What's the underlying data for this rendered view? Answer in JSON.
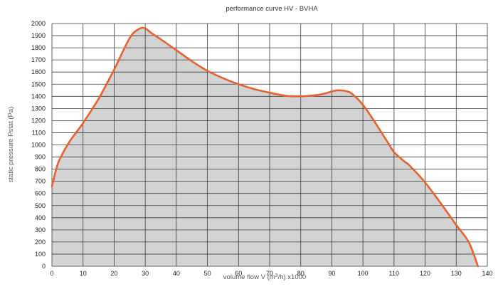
{
  "chart_data": {
    "type": "area",
    "title": "performance curve HV - BVHA",
    "xlabel": "volume flow V (m³/h) x1000",
    "ylabel": "static pressure Pstat (Pa)",
    "xlim": [
      0,
      140
    ],
    "ylim": [
      0,
      2000
    ],
    "xticks": [
      0,
      10,
      20,
      30,
      40,
      50,
      60,
      70,
      80,
      90,
      100,
      110,
      120,
      130,
      140
    ],
    "yticks": [
      0,
      100,
      200,
      300,
      400,
      500,
      600,
      700,
      800,
      900,
      1000,
      1100,
      1200,
      1300,
      1400,
      1500,
      1600,
      1700,
      1800,
      1900,
      2000
    ],
    "grid": true,
    "colors": {
      "line": "#e8602c",
      "fill": "#d3d3d3",
      "grid": "#3a3a3a"
    },
    "series": [
      {
        "x": [
          0,
          2,
          5,
          8,
          10,
          15,
          20,
          25,
          28,
          30,
          32,
          35,
          40,
          45,
          50,
          55,
          60,
          65,
          70,
          75,
          80,
          85,
          88,
          90,
          92,
          95,
          97,
          100,
          103,
          105,
          108,
          110,
          113,
          115,
          120,
          125,
          130,
          134,
          137
        ],
        "y": [
          660,
          850,
          1000,
          1110,
          1180,
          1380,
          1620,
          1880,
          1955,
          1960,
          1920,
          1870,
          1780,
          1690,
          1610,
          1550,
          1500,
          1460,
          1430,
          1405,
          1400,
          1410,
          1425,
          1440,
          1450,
          1440,
          1410,
          1330,
          1220,
          1140,
          1020,
          940,
          870,
          830,
          690,
          520,
          340,
          200,
          0
        ]
      }
    ]
  }
}
